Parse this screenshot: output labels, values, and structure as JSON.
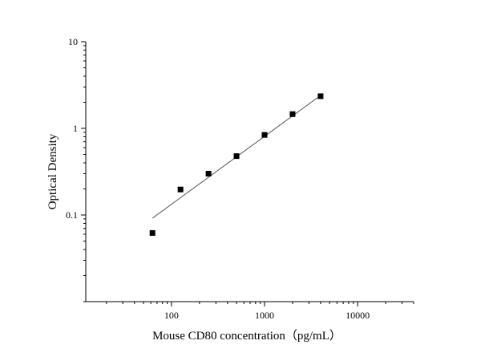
{
  "chart_data": {
    "type": "scatter",
    "title": "",
    "xlabel": "Mouse CD80 concentration（pg/mL）",
    "ylabel": "Optical Density",
    "xscale": "log",
    "yscale": "log",
    "xlim": [
      12,
      40000
    ],
    "ylim": [
      0.01,
      10
    ],
    "x_ticks": [
      100,
      1000,
      10000
    ],
    "x_tick_labels": [
      "100",
      "1000",
      "10000"
    ],
    "y_ticks": [
      0.1,
      1,
      10
    ],
    "y_tick_labels": [
      "0.1",
      "1",
      "10"
    ],
    "grid": false,
    "legend": "none",
    "marker": "square",
    "marker_color": "#000000",
    "series": [
      {
        "x": [
          62.5,
          125,
          250,
          500,
          1000,
          2000,
          4000
        ],
        "y": [
          0.062,
          0.197,
          0.3,
          0.478,
          0.84,
          1.46,
          2.35
        ]
      }
    ],
    "fit_line": {
      "x": [
        62.5,
        4000
      ],
      "y": [
        0.092,
        2.4
      ],
      "color": "#555555"
    }
  }
}
